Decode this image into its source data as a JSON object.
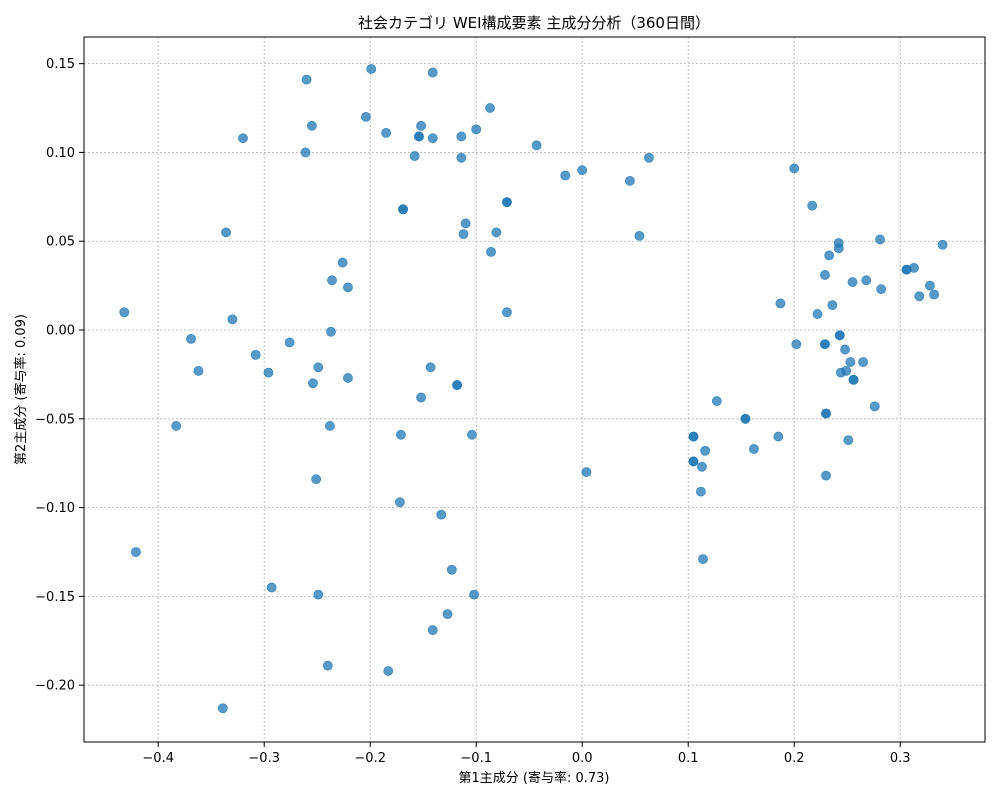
{
  "chart_data": {
    "type": "scatter",
    "title": "社会カテゴリ WEI構成要素 主成分分析（360日間）",
    "xlabel": "第1主成分 (寄与率: 0.73)",
    "ylabel": "第2主成分 (寄与率: 0.09)",
    "xlim": [
      -0.47,
      0.38
    ],
    "ylim": [
      -0.232,
      0.165
    ],
    "xticks": [
      "−0.4",
      "−0.3",
      "−0.2",
      "−0.1",
      "0.0",
      "0.1",
      "0.2",
      "0.3"
    ],
    "xtick_values": [
      -0.4,
      -0.3,
      -0.2,
      -0.1,
      0.0,
      0.1,
      0.2,
      0.3
    ],
    "yticks": [
      "−0.20",
      "−0.15",
      "−0.10",
      "−0.05",
      "0.00",
      "0.05",
      "0.10",
      "0.15"
    ],
    "ytick_values": [
      -0.2,
      -0.15,
      -0.1,
      -0.05,
      0.0,
      0.05,
      0.1,
      0.15
    ],
    "grid": true,
    "point_color": "#1f77b4",
    "points": [
      [
        -0.432,
        0.01
      ],
      [
        -0.421,
        -0.125
      ],
      [
        -0.383,
        -0.054
      ],
      [
        -0.369,
        -0.005
      ],
      [
        -0.362,
        -0.023
      ],
      [
        -0.339,
        -0.213
      ],
      [
        -0.336,
        0.055
      ],
      [
        -0.33,
        0.006
      ],
      [
        -0.32,
        0.108
      ],
      [
        -0.308,
        -0.014
      ],
      [
        -0.296,
        -0.024
      ],
      [
        -0.293,
        -0.145
      ],
      [
        -0.276,
        -0.007
      ],
      [
        -0.26,
        0.141
      ],
      [
        -0.261,
        0.1
      ],
      [
        -0.255,
        0.115
      ],
      [
        -0.254,
        -0.03
      ],
      [
        -0.251,
        -0.084
      ],
      [
        -0.249,
        -0.021
      ],
      [
        -0.249,
        -0.149
      ],
      [
        -0.24,
        -0.189
      ],
      [
        -0.238,
        -0.054
      ],
      [
        -0.237,
        -0.001
      ],
      [
        -0.236,
        0.028
      ],
      [
        -0.226,
        0.038
      ],
      [
        -0.221,
        0.024
      ],
      [
        -0.221,
        -0.027
      ],
      [
        -0.204,
        0.12
      ],
      [
        -0.199,
        0.147
      ],
      [
        -0.185,
        0.111
      ],
      [
        -0.183,
        -0.192
      ],
      [
        -0.172,
        -0.097
      ],
      [
        -0.171,
        -0.059
      ],
      [
        -0.169,
        0.068
      ],
      [
        -0.169,
        0.068
      ],
      [
        -0.158,
        0.098
      ],
      [
        -0.154,
        0.109
      ],
      [
        -0.154,
        0.109
      ],
      [
        -0.152,
        0.115
      ],
      [
        -0.152,
        -0.038
      ],
      [
        -0.143,
        -0.021
      ],
      [
        -0.141,
        0.145
      ],
      [
        -0.141,
        0.108
      ],
      [
        -0.141,
        -0.169
      ],
      [
        -0.133,
        -0.104
      ],
      [
        -0.127,
        -0.16
      ],
      [
        -0.123,
        -0.135
      ],
      [
        -0.118,
        -0.031
      ],
      [
        -0.118,
        -0.031
      ],
      [
        -0.114,
        0.109
      ],
      [
        -0.114,
        0.097
      ],
      [
        -0.112,
        0.054
      ],
      [
        -0.11,
        0.06
      ],
      [
        -0.104,
        -0.059
      ],
      [
        -0.102,
        -0.149
      ],
      [
        -0.1,
        0.113
      ],
      [
        -0.087,
        0.125
      ],
      [
        -0.086,
        0.044
      ],
      [
        -0.081,
        0.055
      ],
      [
        -0.071,
        0.072
      ],
      [
        -0.071,
        0.072
      ],
      [
        -0.071,
        0.01
      ],
      [
        -0.043,
        0.104
      ],
      [
        -0.016,
        0.087
      ],
      [
        0.0,
        0.09
      ],
      [
        0.004,
        -0.08
      ],
      [
        0.045,
        0.084
      ],
      [
        0.054,
        0.053
      ],
      [
        0.063,
        0.097
      ],
      [
        0.105,
        -0.06
      ],
      [
        0.105,
        -0.06
      ],
      [
        0.105,
        -0.074
      ],
      [
        0.105,
        -0.074
      ],
      [
        0.112,
        -0.091
      ],
      [
        0.113,
        -0.077
      ],
      [
        0.114,
        -0.129
      ],
      [
        0.116,
        -0.068
      ],
      [
        0.127,
        -0.04
      ],
      [
        0.154,
        -0.05
      ],
      [
        0.154,
        -0.05
      ],
      [
        0.162,
        -0.067
      ],
      [
        0.185,
        -0.06
      ],
      [
        0.187,
        0.015
      ],
      [
        0.2,
        0.091
      ],
      [
        0.202,
        -0.008
      ],
      [
        0.217,
        0.07
      ],
      [
        0.222,
        0.009
      ],
      [
        0.229,
        0.031
      ],
      [
        0.229,
        -0.008
      ],
      [
        0.229,
        -0.008
      ],
      [
        0.23,
        -0.047
      ],
      [
        0.23,
        -0.047
      ],
      [
        0.23,
        -0.082
      ],
      [
        0.233,
        0.042
      ],
      [
        0.236,
        0.014
      ],
      [
        0.242,
        0.046
      ],
      [
        0.242,
        0.049
      ],
      [
        0.243,
        -0.003
      ],
      [
        0.243,
        -0.003
      ],
      [
        0.244,
        -0.024
      ],
      [
        0.248,
        -0.011
      ],
      [
        0.249,
        -0.023
      ],
      [
        0.251,
        -0.062
      ],
      [
        0.253,
        -0.018
      ],
      [
        0.255,
        0.027
      ],
      [
        0.256,
        -0.028
      ],
      [
        0.256,
        -0.028
      ],
      [
        0.265,
        -0.018
      ],
      [
        0.268,
        0.028
      ],
      [
        0.276,
        -0.043
      ],
      [
        0.281,
        0.051
      ],
      [
        0.282,
        0.023
      ],
      [
        0.306,
        0.034
      ],
      [
        0.306,
        0.034
      ],
      [
        0.313,
        0.035
      ],
      [
        0.318,
        0.019
      ],
      [
        0.328,
        0.025
      ],
      [
        0.332,
        0.02
      ],
      [
        0.34,
        0.048
      ]
    ]
  }
}
